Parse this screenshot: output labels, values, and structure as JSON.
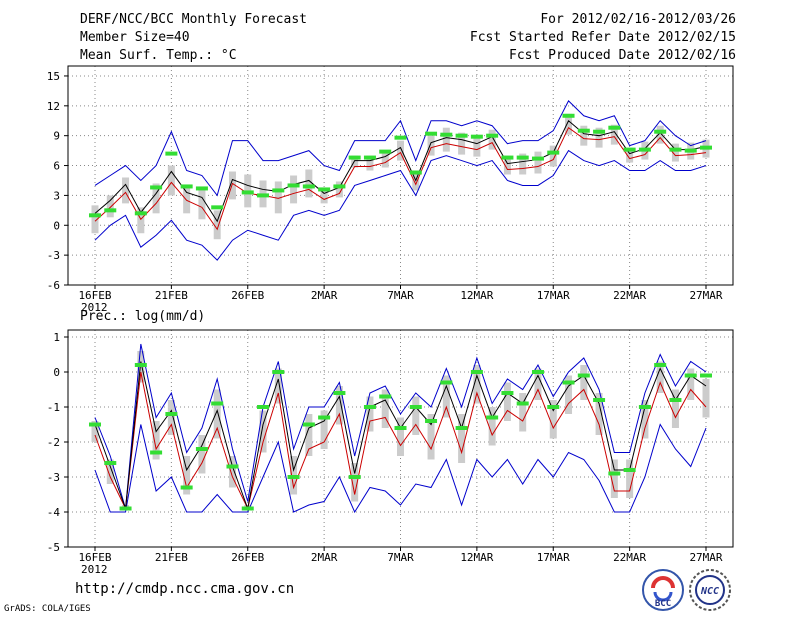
{
  "header": {
    "title": "DERF/NCC/BCC Monthly Forecast",
    "member": "Member Size=40",
    "variable": "Mean Surf. Temp.: °C",
    "period": "For 2012/02/16-2012/03/26",
    "refer": "Fcst Started Refer Date 2012/02/15",
    "produced": "Fcst Produced Date 2012/02/16"
  },
  "footer": {
    "url": "http://cmdp.ncc.cma.gov.cn",
    "credit": "GrADS: COLA/IGES",
    "logo_bcc": "BCC",
    "logo_ncc": "NCC"
  },
  "colors": {
    "mean": "#000000",
    "median": "#cc0000",
    "envelope": "#0000cc",
    "obs": "#33dd33",
    "box": "#cccccc"
  },
  "chart_data": [
    {
      "type": "line",
      "title": "Mean Surf. Temp.: °C",
      "xlabel": "",
      "ylabel": "",
      "x_ticks": [
        "16FEB\n2012",
        "21FEB",
        "26FEB",
        "2MAR",
        "7MAR",
        "12MAR",
        "17MAR",
        "22MAR",
        "27MAR"
      ],
      "x_tick_index": [
        0,
        5,
        10,
        15,
        20,
        25,
        30,
        35,
        40
      ],
      "ylim": [
        -6,
        16
      ],
      "y_ticks": [
        -6,
        -3,
        0,
        3,
        6,
        9,
        12,
        15
      ],
      "grid": true,
      "series": [
        {
          "name": "ensemble mean",
          "values": [
            1.2,
            2.5,
            4.1,
            1.3,
            3.2,
            5.4,
            3.3,
            2.8,
            0.4,
            4.6,
            4.0,
            3.6,
            3.4,
            4.1,
            4.5,
            3.2,
            3.8,
            6.5,
            6.5,
            6.9,
            7.8,
            4.5,
            8.3,
            8.8,
            8.6,
            8.2,
            8.9,
            6.2,
            6.4,
            6.6,
            7.3,
            10.5,
            9.2,
            9.0,
            9.4,
            7.2,
            7.7,
            9.3,
            7.6,
            7.6,
            7.9
          ]
        },
        {
          "name": "median",
          "values": [
            0.4,
            1.8,
            3.3,
            0.6,
            2.2,
            4.3,
            2.5,
            1.8,
            -0.4,
            4.2,
            3.2,
            3.0,
            2.7,
            3.2,
            3.6,
            2.6,
            3.2,
            5.9,
            5.9,
            6.3,
            7.3,
            4.1,
            7.8,
            8.2,
            7.9,
            7.6,
            8.3,
            5.6,
            5.7,
            5.9,
            6.6,
            9.8,
            8.7,
            8.6,
            8.9,
            6.7,
            7.1,
            8.8,
            7.0,
            7.1,
            7.3
          ]
        },
        {
          "name": "max",
          "values": [
            4.0,
            5.0,
            6.0,
            4.5,
            6.0,
            9.4,
            5.5,
            5.0,
            3.0,
            8.5,
            8.5,
            6.5,
            6.5,
            7.0,
            7.5,
            6.0,
            5.5,
            8.5,
            8.5,
            8.5,
            10.5,
            6.5,
            10.5,
            10.5,
            10.0,
            10.5,
            10.0,
            8.2,
            8.5,
            8.5,
            9.5,
            12.5,
            11.0,
            10.5,
            11.0,
            8.0,
            8.5,
            10.5,
            9.0,
            8.0,
            8.5
          ]
        },
        {
          "name": "min",
          "values": [
            -1.5,
            0.0,
            1.0,
            -2.2,
            -1.0,
            0.5,
            -1.5,
            -2.0,
            -3.5,
            -1.5,
            -0.5,
            -1.0,
            -1.5,
            1.0,
            1.5,
            1.0,
            1.5,
            4.0,
            4.5,
            5.0,
            5.5,
            3.0,
            6.5,
            7.0,
            6.5,
            6.0,
            6.5,
            4.5,
            4.0,
            4.0,
            5.0,
            7.5,
            6.5,
            6.0,
            6.5,
            5.5,
            5.5,
            6.5,
            5.5,
            5.5,
            6.0
          ]
        },
        {
          "name": "box upper",
          "values": [
            2.0,
            3.0,
            4.8,
            1.8,
            4.2,
            6.0,
            4.0,
            3.6,
            1.5,
            5.4,
            5.1,
            4.5,
            4.4,
            5.0,
            5.6,
            3.8,
            4.4,
            7.0,
            7.0,
            7.5,
            8.5,
            5.5,
            9.0,
            9.8,
            9.3,
            9.0,
            9.6,
            7.0,
            7.2,
            7.4,
            8.0,
            11.2,
            10.0,
            9.8,
            10.1,
            7.8,
            8.4,
            10.0,
            8.2,
            8.3,
            8.6
          ]
        },
        {
          "name": "box lower",
          "values": [
            -0.8,
            0.8,
            2.2,
            -0.8,
            1.2,
            3.0,
            1.2,
            0.6,
            -1.4,
            2.6,
            1.8,
            1.8,
            1.2,
            2.2,
            2.8,
            2.2,
            2.8,
            5.8,
            5.5,
            5.8,
            6.5,
            3.5,
            7.0,
            7.4,
            7.1,
            6.9,
            7.6,
            5.1,
            5.1,
            5.2,
            5.9,
            9.1,
            8.0,
            7.8,
            8.1,
            6.3,
            6.6,
            8.2,
            6.4,
            6.6,
            6.8
          ]
        },
        {
          "name": "observed",
          "values": [
            1.0,
            1.5,
            null,
            1.2,
            3.8,
            7.2,
            3.9,
            3.7,
            1.8,
            null,
            3.3,
            3.0,
            3.5,
            4.0,
            3.9,
            3.6,
            3.9,
            6.8,
            6.8,
            7.4,
            8.8,
            5.3,
            9.2,
            9.1,
            9.0,
            8.9,
            9.0,
            6.8,
            6.8,
            6.7,
            7.3,
            11.0,
            9.5,
            9.4,
            9.8,
            7.6,
            7.6,
            9.4,
            7.6,
            7.5,
            7.8
          ]
        }
      ]
    },
    {
      "type": "line",
      "title": "Prec.: log(mm/d)",
      "xlabel": "",
      "ylabel": "",
      "x_ticks": [
        "16FEB\n2012",
        "21FEB",
        "26FEB",
        "2MAR",
        "7MAR",
        "12MAR",
        "17MAR",
        "22MAR",
        "27MAR"
      ],
      "x_tick_index": [
        0,
        5,
        10,
        15,
        20,
        25,
        30,
        35,
        40
      ],
      "ylim": [
        -5,
        1.2
      ],
      "y_ticks": [
        -5,
        -4,
        -3,
        -2,
        -1,
        0,
        1
      ],
      "grid": true,
      "series": [
        {
          "name": "ensemble mean",
          "values": [
            -1.5,
            -2.7,
            -3.9,
            0.3,
            -1.7,
            -1.1,
            -2.8,
            -2.1,
            -1.1,
            -2.7,
            -3.9,
            -1.5,
            -0.2,
            -2.8,
            -1.6,
            -1.4,
            -0.7,
            -2.9,
            -1.0,
            -0.8,
            -1.6,
            -1.0,
            -1.5,
            -0.4,
            -1.6,
            -0.1,
            -1.3,
            -0.6,
            -0.9,
            -0.1,
            -1.1,
            -0.4,
            -0.1,
            -0.9,
            -2.8,
            -2.8,
            -1.0,
            0.1,
            -0.8,
            -0.1,
            -0.4
          ]
        },
        {
          "name": "median",
          "values": [
            -1.8,
            -3.0,
            -3.9,
            0.0,
            -2.2,
            -1.5,
            -3.3,
            -2.6,
            -1.6,
            -3.0,
            -3.9,
            -2.0,
            -0.6,
            -3.3,
            -2.2,
            -2.0,
            -1.2,
            -3.5,
            -1.4,
            -1.3,
            -2.1,
            -1.5,
            -2.2,
            -1.0,
            -2.3,
            -0.6,
            -1.8,
            -1.1,
            -1.4,
            -0.5,
            -1.6,
            -0.9,
            -0.5,
            -1.5,
            -3.4,
            -3.4,
            -1.6,
            -0.3,
            -1.3,
            -0.5,
            -1.0
          ]
        },
        {
          "name": "max",
          "values": [
            -1.3,
            -2.4,
            -3.9,
            0.8,
            -1.3,
            -0.6,
            -2.3,
            -1.6,
            -0.2,
            -2.2,
            -3.7,
            -1.0,
            0.3,
            -2.2,
            -1.0,
            -1.0,
            -0.3,
            -2.4,
            -0.6,
            -0.4,
            -1.2,
            -0.6,
            -1.0,
            0.1,
            -1.0,
            0.4,
            -0.9,
            -0.2,
            -0.5,
            0.2,
            -0.7,
            0.0,
            0.4,
            -0.5,
            -2.3,
            -2.3,
            -0.6,
            0.5,
            -0.4,
            0.3,
            0.0
          ]
        },
        {
          "name": "min",
          "values": [
            -2.8,
            -4.0,
            -4.0,
            -1.5,
            -3.4,
            -3.0,
            -4.0,
            -4.0,
            -3.5,
            -4.0,
            -4.0,
            -3.0,
            -2.0,
            -4.0,
            -3.8,
            -3.7,
            -3.0,
            -4.0,
            -3.3,
            -3.4,
            -3.8,
            -3.2,
            -3.3,
            -2.5,
            -3.8,
            -2.5,
            -3.0,
            -2.5,
            -3.2,
            -2.5,
            -3.0,
            -2.3,
            -2.5,
            -3.1,
            -4.0,
            -4.0,
            -3.0,
            -1.5,
            -2.2,
            -2.7,
            -1.6
          ]
        },
        {
          "name": "box upper",
          "values": [
            -1.4,
            -2.5,
            -3.8,
            0.6,
            -1.4,
            -0.8,
            -2.4,
            -1.8,
            -0.5,
            -2.4,
            -3.8,
            -1.1,
            0.1,
            -2.4,
            -1.2,
            -1.1,
            -0.4,
            -2.6,
            -0.7,
            -0.5,
            -1.3,
            -0.7,
            -1.2,
            -0.1,
            -1.2,
            0.2,
            -1.0,
            -0.3,
            -0.6,
            0.1,
            -0.8,
            -0.1,
            0.2,
            -0.6,
            -2.5,
            -2.5,
            -0.8,
            0.3,
            -0.5,
            0.1,
            -0.2
          ]
        },
        {
          "name": "box lower",
          "values": [
            -2.0,
            -3.2,
            -3.9,
            -0.3,
            -2.5,
            -1.8,
            -3.5,
            -2.9,
            -1.9,
            -3.3,
            -3.9,
            -2.3,
            -0.9,
            -3.5,
            -2.4,
            -2.2,
            -1.5,
            -3.7,
            -1.7,
            -1.6,
            -2.4,
            -1.8,
            -2.5,
            -1.3,
            -2.6,
            -0.9,
            -2.1,
            -1.4,
            -1.7,
            -0.8,
            -1.9,
            -1.2,
            -0.8,
            -1.8,
            -3.6,
            -3.6,
            -1.9,
            -0.6,
            -1.6,
            -0.8,
            -1.3
          ]
        },
        {
          "name": "observed",
          "values": [
            -1.5,
            -2.6,
            -3.9,
            0.2,
            -2.3,
            -1.2,
            -3.3,
            -2.2,
            -0.9,
            -2.7,
            -3.9,
            -1.0,
            0.0,
            -3.0,
            -1.5,
            -1.3,
            -0.6,
            -3.0,
            -1.0,
            -0.7,
            -1.6,
            -1.0,
            -1.4,
            -0.3,
            -1.6,
            0.0,
            -1.3,
            -0.6,
            -0.9,
            0.0,
            -1.0,
            -0.3,
            -0.1,
            -0.8,
            -2.9,
            -2.8,
            -1.0,
            0.2,
            -0.8,
            -0.1,
            -0.1
          ]
        }
      ]
    }
  ]
}
